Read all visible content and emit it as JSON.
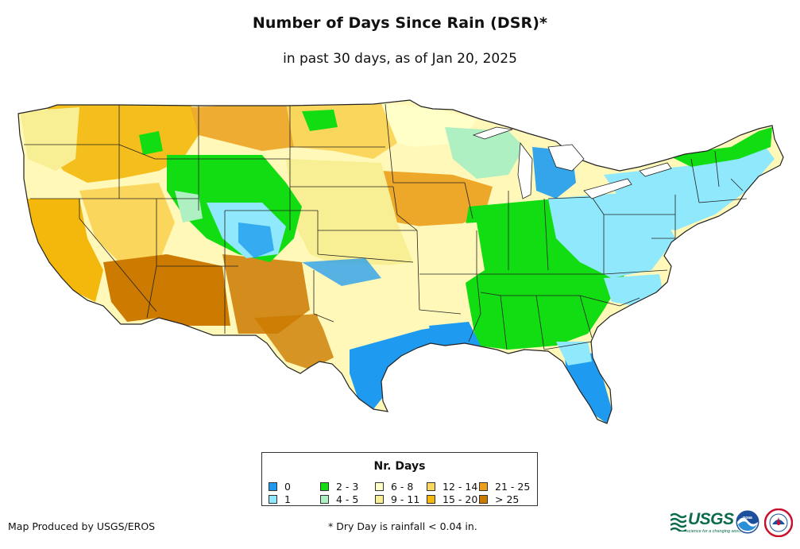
{
  "header": {
    "title": "Number of Days Since Rain (DSR)*",
    "subtitle": "in past 30 days, as of Jan 20, 2025"
  },
  "legend": {
    "title": "Nr. Days",
    "items": [
      {
        "label": "0",
        "color": "#1e9bf0"
      },
      {
        "label": "1",
        "color": "#8fe8fb"
      },
      {
        "label": "2 - 3",
        "color": "#12dc12"
      },
      {
        "label": "4 - 5",
        "color": "#aef0c2"
      },
      {
        "label": "6 - 8",
        "color": "#ffffc8"
      },
      {
        "label": "9 - 11",
        "color": "#f8ef94"
      },
      {
        "label": "12 - 14",
        "color": "#fbd65c"
      },
      {
        "label": "15 - 20",
        "color": "#f3b80b"
      },
      {
        "label": "21 - 25",
        "color": "#eb9f1a"
      },
      {
        "label": "> 25",
        "color": "#cc7a00"
      }
    ]
  },
  "footer": {
    "credit": "Map Produced by USGS/EROS",
    "footnote": "* Dry Day is rainfall < 0.04 in.",
    "usgs_text": "USGS",
    "usgs_tagline": "science for a changing world"
  },
  "map": {
    "subject": "contiguous United States",
    "border_color": "#222222"
  }
}
